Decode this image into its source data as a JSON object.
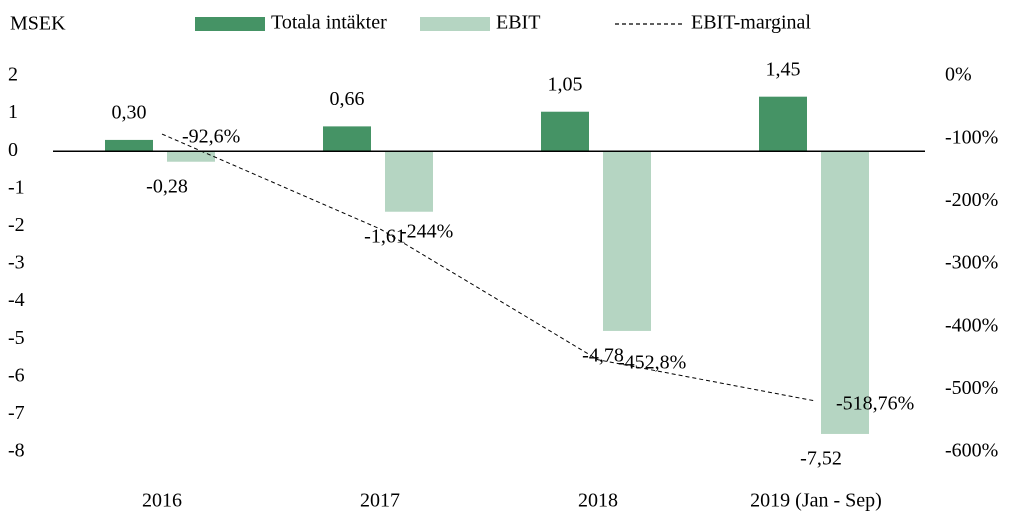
{
  "chart_data": {
    "type": "bar",
    "y_label": "MSEK",
    "categories": [
      "2016",
      "2017",
      "2018",
      "2019 (Jan - Sep)"
    ],
    "series": [
      {
        "name": "Totala intäkter",
        "type": "bar",
        "color": "#459365",
        "values": [
          0.3,
          0.66,
          1.05,
          1.45
        ],
        "value_labels": [
          "0,30",
          "0,66",
          "1,05",
          "1,45"
        ]
      },
      {
        "name": "EBIT",
        "type": "bar",
        "color": "#b5d5c2",
        "values": [
          -0.28,
          -1.61,
          -4.78,
          -7.52
        ],
        "value_labels": [
          "-0,28",
          "-1,61",
          "-4,78",
          "-7,52"
        ]
      },
      {
        "name": "EBIT-marginal",
        "type": "line",
        "axis": "y2",
        "color": "#000000",
        "values": [
          -92.6,
          -244,
          -452.8,
          -518.76
        ],
        "value_labels": [
          "-92,6%",
          "-244%",
          "-452,8%",
          "-518,76%"
        ]
      }
    ],
    "ylim": [
      -8,
      2
    ],
    "yticks": [
      2,
      1,
      0,
      -1,
      -2,
      -3,
      -4,
      -5,
      -6,
      -7,
      -8
    ],
    "y2lim": [
      -600,
      0
    ],
    "y2ticks": [
      {
        "value": 0,
        "label": "0%"
      },
      {
        "value": -100,
        "label": "-100%"
      },
      {
        "value": -200,
        "label": "-200%"
      },
      {
        "value": -300,
        "label": "-300%"
      },
      {
        "value": -400,
        "label": "-400%"
      },
      {
        "value": -500,
        "label": "-500%"
      },
      {
        "value": -600,
        "label": "-600%"
      }
    ],
    "grid": false
  }
}
